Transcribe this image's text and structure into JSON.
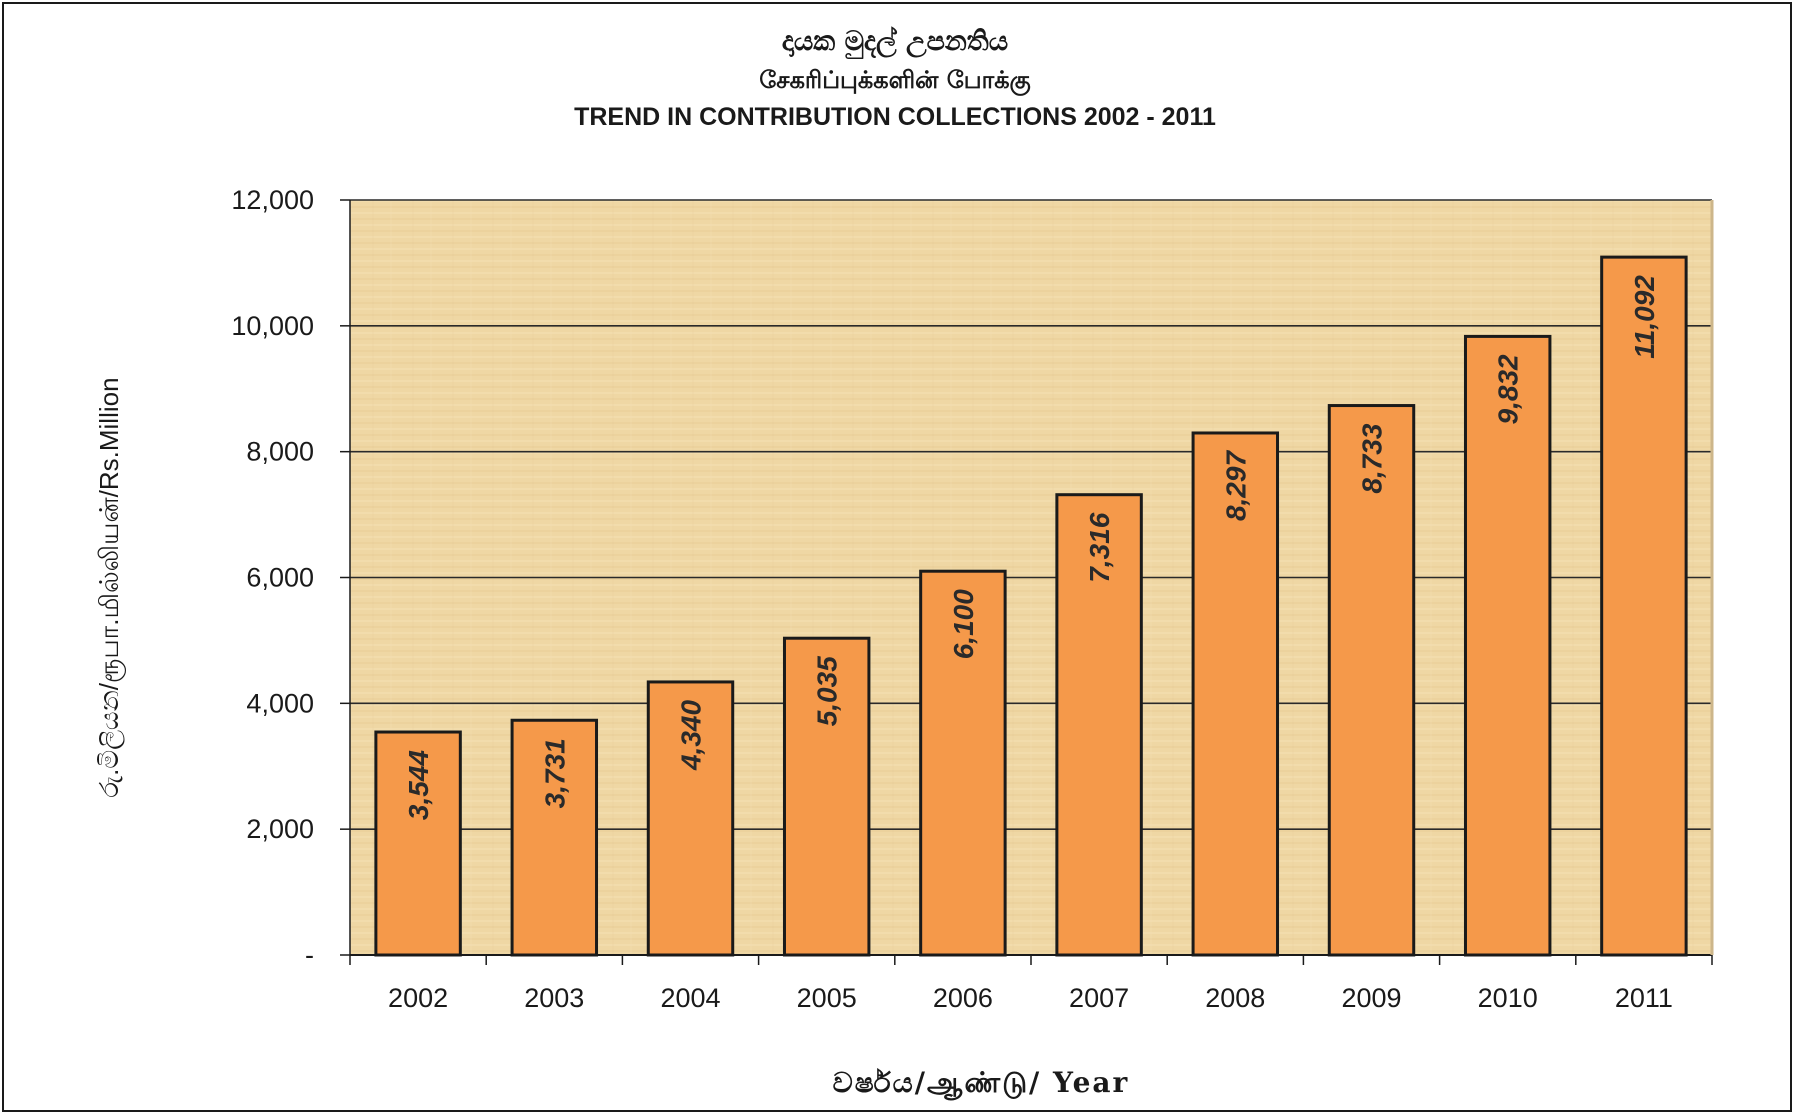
{
  "chart_data": {
    "type": "bar",
    "title_si": "දායක මුදල් උපනතිය",
    "title_ta": "சேகரிப்புக்களின் போக்கு",
    "title": "TREND IN CONTRIBUTION COLLECTIONS  2002 - 2011",
    "ylabel": "රු.මිලියන/ரூபா.மில்லியன்/Rs.Million",
    "xlabel": "වර්ෂය/ஆண்டு/ Year",
    "categories": [
      "2002",
      "2003",
      "2004",
      "2005",
      "2006",
      "2007",
      "2008",
      "2009",
      "2010",
      "2011"
    ],
    "values": [
      3544,
      3731,
      4340,
      5035,
      6100,
      7316,
      8297,
      8733,
      9832,
      11092
    ],
    "data_labels": [
      "3,544",
      "3,731",
      "4,340",
      "5,035",
      "6,100",
      "7,316",
      "8,297",
      "8,733",
      "9,832",
      "11,092"
    ],
    "ylim": [
      0,
      12000
    ],
    "y_ticks": [
      0,
      2000,
      4000,
      6000,
      8000,
      10000,
      12000
    ],
    "y_tick_labels": [
      "-",
      "2,000",
      "4,000",
      "6,000",
      "8,000",
      "10,000",
      "12,000"
    ],
    "grid": true,
    "colors": {
      "bar": "#F5994A",
      "bar_edge": "#1a1a1a",
      "plot_bg": "#EFD7A4",
      "grid": "#2a2a2a"
    }
  }
}
